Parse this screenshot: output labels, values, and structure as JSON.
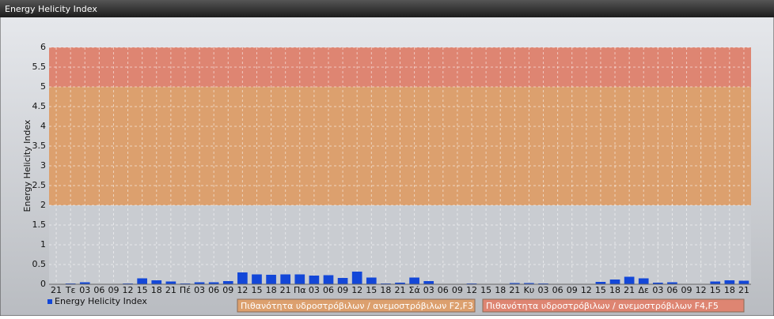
{
  "chart_data": {
    "type": "bar",
    "title": "Energy Helicity Index",
    "y_label": "Energy Helicity Index",
    "categories": [
      "21",
      "Τε",
      "03",
      "06",
      "09",
      "12",
      "15",
      "18",
      "21",
      "Πέ",
      "03",
      "06",
      "09",
      "12",
      "15",
      "18",
      "21",
      "Πα",
      "03",
      "06",
      "09",
      "12",
      "15",
      "18",
      "21",
      "Σά",
      "03",
      "06",
      "09",
      "12",
      "15",
      "18",
      "21",
      "Κυ",
      "03",
      "06",
      "09",
      "12",
      "15",
      "18",
      "21",
      "Δε",
      "03",
      "06",
      "09",
      "12",
      "15",
      "18",
      "21"
    ],
    "series": [
      {
        "name": "Energy Helicity Index",
        "color": "#1347d8",
        "values": [
          0.01,
          0.02,
          0.05,
          0.01,
          0.01,
          0.02,
          0.15,
          0.1,
          0.07,
          0.02,
          0.05,
          0.05,
          0.08,
          0.3,
          0.25,
          0.24,
          0.25,
          0.25,
          0.22,
          0.23,
          0.16,
          0.32,
          0.17,
          0.02,
          0.04,
          0.17,
          0.08,
          0.01,
          0.01,
          0.02,
          0.01,
          0.01,
          0.03,
          0.03,
          0.02,
          0.01,
          0.01,
          0.01,
          0.06,
          0.12,
          0.19,
          0.15,
          0.04,
          0.05,
          0.01,
          0.01,
          0.07,
          0.1,
          0.09
        ]
      }
    ],
    "bands": [
      {
        "label": "Πιθανότητα υδροστρόβιλων / ανεμοστρόβιλων F2,F3",
        "from": 2,
        "to": 5,
        "color": "#dca06e"
      },
      {
        "label": "Πιθανότητα υδροστρόβιλων / ανεμοστρόβιλων F4,F5",
        "from": 5,
        "to": 6,
        "color": "#de8572"
      }
    ],
    "ylim": [
      0,
      6
    ],
    "yticks": [
      0,
      0.5,
      1,
      1.5,
      2,
      2.5,
      3,
      3.5,
      4,
      4.5,
      5,
      5.5,
      6
    ],
    "grid": true
  }
}
